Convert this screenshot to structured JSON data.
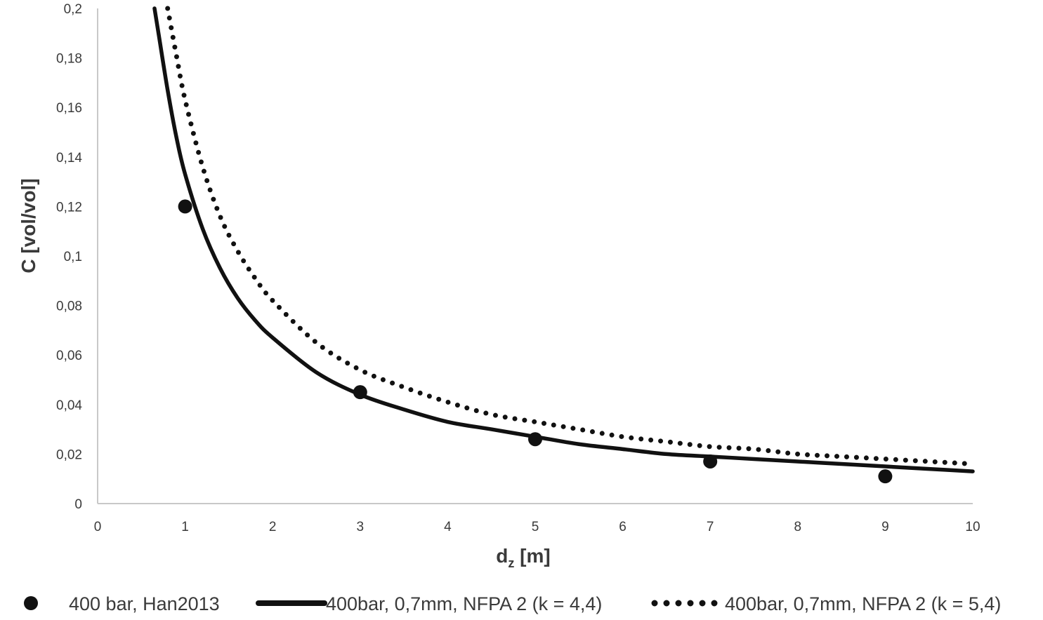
{
  "chart_data": {
    "type": "line",
    "title": "",
    "xlabel": "dz [m]",
    "xlabel_main": "d",
    "xlabel_sub": "z",
    "xlabel_unit": " [m]",
    "ylabel": "C [vol/vol]",
    "xlim": [
      0,
      10
    ],
    "ylim": [
      0,
      0.2
    ],
    "xticks": [
      0,
      1,
      2,
      3,
      4,
      5,
      6,
      7,
      8,
      9,
      10
    ],
    "xtick_labels": [
      "0",
      "1",
      "2",
      "3",
      "4",
      "5",
      "6",
      "7",
      "8",
      "9",
      "10"
    ],
    "yticks": [
      0,
      0.02,
      0.04,
      0.06,
      0.08,
      0.1,
      0.12,
      0.14,
      0.16,
      0.18,
      0.2
    ],
    "ytick_labels": [
      "0",
      "0,02",
      "0,04",
      "0,06",
      "0,08",
      "0,1",
      "0,12",
      "0,14",
      "0,16",
      "0,18",
      "0,2"
    ],
    "grid": false,
    "legend_position": "bottom",
    "series": [
      {
        "name": "400 bar, Han2013",
        "kind": "scatter",
        "color": "#111111",
        "x": [
          1,
          3,
          5,
          7,
          9
        ],
        "y": [
          0.12,
          0.045,
          0.026,
          0.017,
          0.011
        ]
      },
      {
        "name": "400bar, 0,7mm, NFPA 2 (k = 4,4)",
        "kind": "line",
        "style": "solid",
        "color": "#111111",
        "x": [
          0.65,
          0.7,
          0.8,
          0.9,
          1,
          1.2,
          1.4,
          1.6,
          1.8,
          2,
          2.5,
          3,
          3.5,
          4,
          4.5,
          5,
          5.5,
          6,
          6.5,
          7,
          7.5,
          8,
          8.5,
          9,
          9.5,
          10
        ],
        "y": [
          0.2,
          0.189,
          0.167,
          0.148,
          0.133,
          0.111,
          0.095,
          0.083,
          0.074,
          0.067,
          0.053,
          0.044,
          0.038,
          0.033,
          0.03,
          0.027,
          0.024,
          0.022,
          0.02,
          0.019,
          0.018,
          0.017,
          0.016,
          0.015,
          0.014,
          0.013
        ]
      },
      {
        "name": "400bar, 0,7mm, NFPA 2 (k = 5,4)",
        "kind": "line",
        "style": "dotted",
        "color": "#111111",
        "x": [
          0.8,
          0.9,
          1,
          1.2,
          1.4,
          1.6,
          1.8,
          2,
          2.5,
          3,
          3.5,
          4,
          4.5,
          5,
          5.5,
          6,
          6.5,
          7,
          7.5,
          8,
          8.5,
          9,
          9.5,
          10
        ],
        "y": [
          0.2,
          0.181,
          0.163,
          0.136,
          0.116,
          0.102,
          0.091,
          0.082,
          0.065,
          0.054,
          0.047,
          0.041,
          0.036,
          0.033,
          0.03,
          0.027,
          0.025,
          0.023,
          0.022,
          0.02,
          0.019,
          0.018,
          0.017,
          0.016
        ]
      }
    ]
  }
}
